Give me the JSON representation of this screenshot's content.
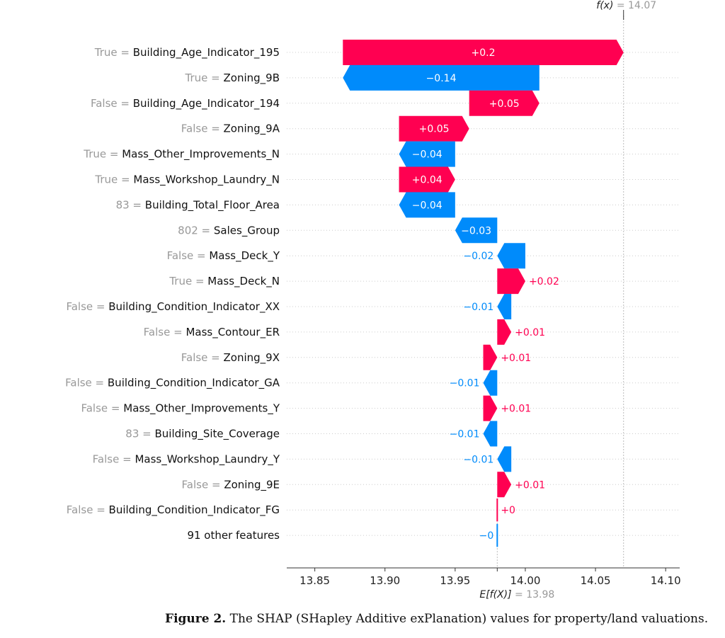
{
  "chart_data": {
    "type": "waterfall",
    "fx_label": "f(x)",
    "fx_value_text": "= 14.07",
    "ex_label": "E[f(X)]",
    "ex_value_text": "= 13.98",
    "fx": 14.07,
    "expected_value": 13.98,
    "xlim": [
      13.83,
      14.11
    ],
    "xticks": [
      13.85,
      13.9,
      13.95,
      14.0,
      14.05,
      14.1
    ],
    "xtick_labels": [
      "13.85",
      "13.90",
      "13.95",
      "14.00",
      "14.05",
      "14.10"
    ],
    "colors": {
      "positive": "#ff0051",
      "negative": "#008bfb",
      "value_text": "#999999",
      "name_text": "#111111"
    },
    "features": [
      {
        "value": "True",
        "name": "Building_Age_Indicator_195",
        "start": 13.87,
        "end": 14.07,
        "label": "+0.2",
        "sign": "pos"
      },
      {
        "value": "True",
        "name": "Zoning_9B",
        "start": 14.01,
        "end": 13.87,
        "label": "−0.14",
        "sign": "neg"
      },
      {
        "value": "False",
        "name": "Building_Age_Indicator_194",
        "start": 13.96,
        "end": 14.01,
        "label": "+0.05",
        "sign": "pos"
      },
      {
        "value": "False",
        "name": "Zoning_9A",
        "start": 13.91,
        "end": 13.96,
        "label": "+0.05",
        "sign": "pos"
      },
      {
        "value": "True",
        "name": "Mass_Other_Improvements_N",
        "start": 13.95,
        "end": 13.91,
        "label": "−0.04",
        "sign": "neg"
      },
      {
        "value": "True",
        "name": "Mass_Workshop_Laundry_N",
        "start": 13.91,
        "end": 13.95,
        "label": "+0.04",
        "sign": "pos"
      },
      {
        "value": "83",
        "name": "Building_Total_Floor_Area",
        "start": 13.95,
        "end": 13.91,
        "label": "−0.04",
        "sign": "neg"
      },
      {
        "value": "802",
        "name": "Sales_Group",
        "start": 13.98,
        "end": 13.95,
        "label": "−0.03",
        "sign": "neg"
      },
      {
        "value": "False",
        "name": "Mass_Deck_Y",
        "start": 14.0,
        "end": 13.98,
        "label": "−0.02",
        "sign": "neg"
      },
      {
        "value": "True",
        "name": "Mass_Deck_N",
        "start": 13.98,
        "end": 14.0,
        "label": "+0.02",
        "sign": "pos"
      },
      {
        "value": "False",
        "name": "Building_Condition_Indicator_XX",
        "start": 13.99,
        "end": 13.98,
        "label": "−0.01",
        "sign": "neg"
      },
      {
        "value": "False",
        "name": "Mass_Contour_ER",
        "start": 13.98,
        "end": 13.99,
        "label": "+0.01",
        "sign": "pos"
      },
      {
        "value": "False",
        "name": "Zoning_9X",
        "start": 13.97,
        "end": 13.98,
        "label": "+0.01",
        "sign": "pos"
      },
      {
        "value": "False",
        "name": "Building_Condition_Indicator_GA",
        "start": 13.98,
        "end": 13.97,
        "label": "−0.01",
        "sign": "neg"
      },
      {
        "value": "False",
        "name": "Mass_Other_Improvements_Y",
        "start": 13.97,
        "end": 13.98,
        "label": "+0.01",
        "sign": "pos"
      },
      {
        "value": "83",
        "name": "Building_Site_Coverage",
        "start": 13.98,
        "end": 13.97,
        "label": "−0.01",
        "sign": "neg"
      },
      {
        "value": "False",
        "name": "Mass_Workshop_Laundry_Y",
        "start": 13.99,
        "end": 13.98,
        "label": "−0.01",
        "sign": "neg"
      },
      {
        "value": "False",
        "name": "Zoning_9E",
        "start": 13.98,
        "end": 13.99,
        "label": "+0.01",
        "sign": "pos"
      },
      {
        "value": "False",
        "name": "Building_Condition_Indicator_FG",
        "start": 13.98,
        "end": 13.98,
        "label": "+0",
        "sign": "pos"
      },
      {
        "value": "",
        "name": "91 other features",
        "start": 13.98,
        "end": 13.98,
        "label": "−0",
        "sign": "neg"
      }
    ]
  },
  "caption": {
    "label": "Figure 2.",
    "text": "The SHAP (SHapley Additive exPlanation) values for property/land valuations."
  }
}
